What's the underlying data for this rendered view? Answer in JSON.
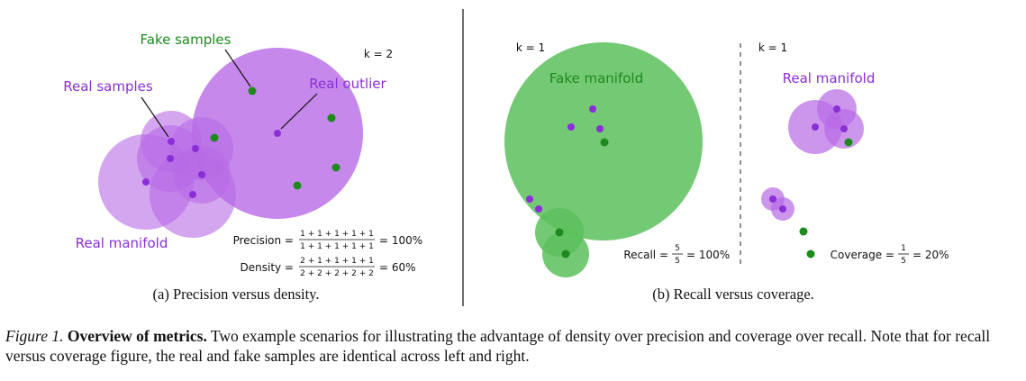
{
  "panel_a": {
    "label_fake_samples": "Fake samples",
    "label_real_samples": "Real samples",
    "label_real_outlier": "Real outlier",
    "label_real_manifold": "Real manifold",
    "k_label": "k = 2",
    "precision_label": "Precision =",
    "precision_num": "1 + 1 + 1 + 1 + 1",
    "precision_den": "1 + 1 + 1 + 1 + 1",
    "precision_result": "= 100%",
    "density_label": "Density =",
    "density_num": "2 + 1 + 1 + 1 + 1",
    "density_den": "2 + 2 + 2 + 2 + 2",
    "density_result": "= 60%",
    "subcaption": "(a) Precision versus density."
  },
  "panel_b": {
    "k_label_left": "k = 1",
    "k_label_right": "k = 1",
    "label_fake_manifold": "Fake manifold",
    "label_real_manifold": "Real manifold",
    "recall_label": "Recall =",
    "recall_num": "5",
    "recall_den": "5",
    "recall_result": "= 100%",
    "coverage_label": "Coverage =",
    "coverage_num": "1",
    "coverage_den": "5",
    "coverage_result": "= 20%",
    "subcaption": "(b) Recall versus coverage."
  },
  "caption": {
    "lead": "Figure 1.",
    "title": "Overview of metrics.",
    "body": "Two example scenarios for illustrating the advantage of density over precision and coverage over recall. Note that for recall versus coverage figure, the real and fake samples are identical across left and right."
  },
  "colors": {
    "real": "#8a2fd6",
    "real_fill": "#b86ae6",
    "fake": "#1e8a1e",
    "fake_fill": "#5cbf5c"
  }
}
